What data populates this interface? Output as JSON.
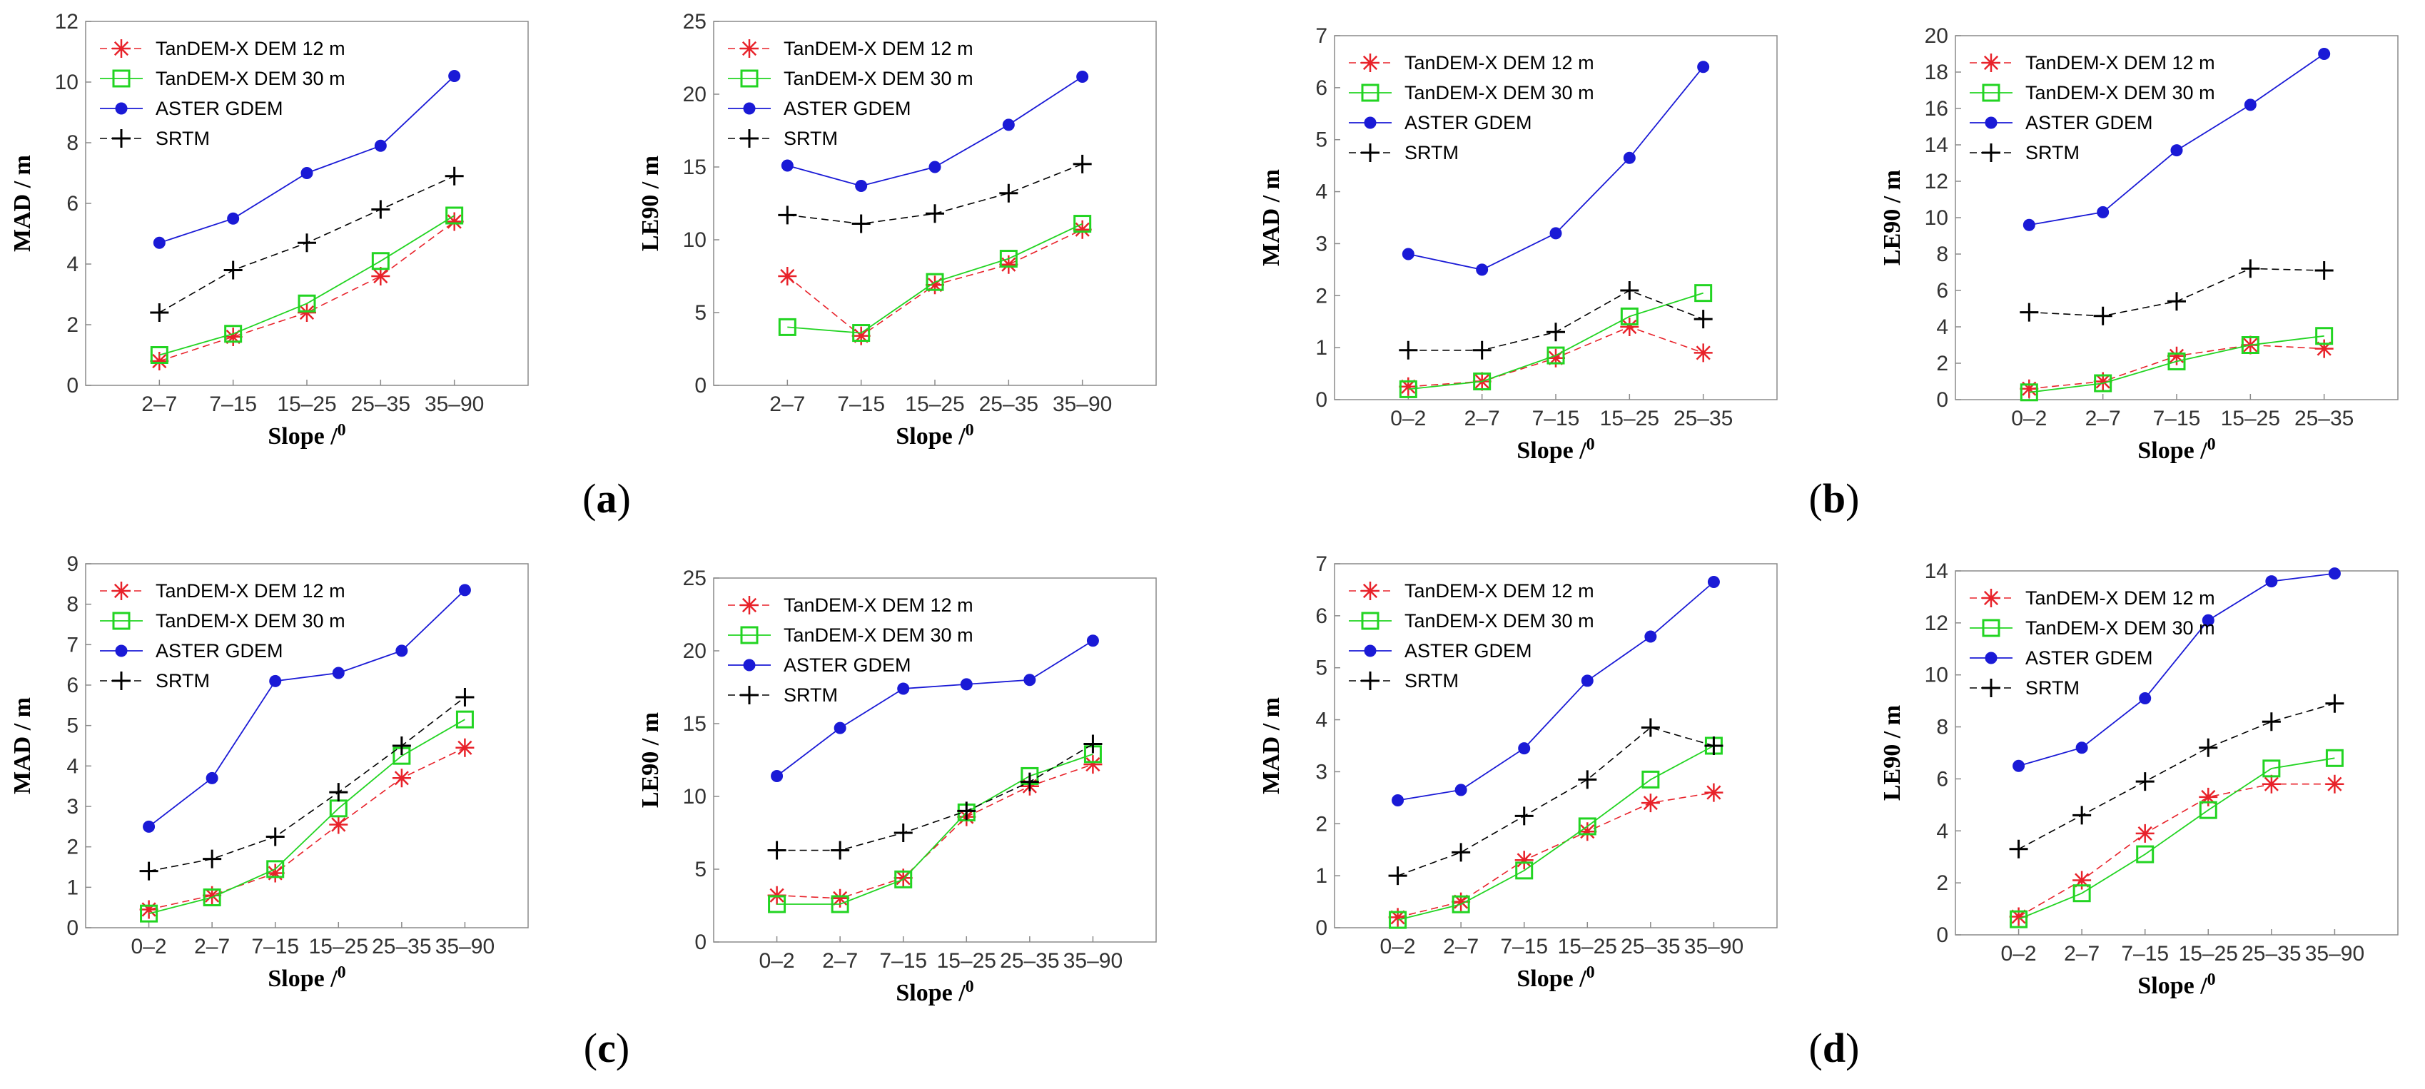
{
  "legend_entries": [
    "TanDEM-X DEM 12 m",
    "TanDEM-X DEM 30 m",
    "ASTER GDEM",
    "SRTM"
  ],
  "series_colors": {
    "TanDEM-X DEM 12 m": "#e8222a",
    "TanDEM-X DEM 30 m": "#22d422",
    "ASTER GDEM": "#1a1ad6",
    "SRTM": "#000000"
  },
  "captions": {
    "a": {
      "open": "(",
      "letter": "a",
      "close": ")"
    },
    "b": {
      "open": "(",
      "letter": "b",
      "close": ")"
    },
    "c": {
      "open": "(",
      "letter": "c",
      "close": ")"
    },
    "d": {
      "open": "(",
      "letter": "d",
      "close": ")"
    }
  },
  "chart_data": [
    {
      "id": "a-mad",
      "group": "a",
      "type": "line",
      "xlabel": "Slope /",
      "xlabel_sup": "0",
      "ylabel": "MAD / m",
      "categories": [
        "2–7",
        "7–15",
        "15–25",
        "25–35",
        "35–90"
      ],
      "ylim": [
        0,
        12
      ],
      "yticks": [
        0,
        2,
        4,
        6,
        8,
        10,
        12
      ],
      "legend": "top-left",
      "series": [
        {
          "name": "TanDEM-X DEM 12 m",
          "values": [
            0.8,
            1.6,
            2.4,
            3.6,
            5.4
          ]
        },
        {
          "name": "TanDEM-X DEM 30 m",
          "values": [
            1.0,
            1.7,
            2.7,
            4.1,
            5.6
          ]
        },
        {
          "name": "ASTER GDEM",
          "values": [
            4.7,
            5.5,
            7.0,
            7.9,
            10.2
          ]
        },
        {
          "name": "SRTM",
          "values": [
            2.4,
            3.8,
            4.7,
            5.8,
            6.9
          ]
        }
      ]
    },
    {
      "id": "a-le90",
      "group": "a",
      "type": "line",
      "xlabel": "Slope /",
      "xlabel_sup": "0",
      "ylabel": "LE90 / m",
      "categories": [
        "2–7",
        "7–15",
        "15–25",
        "25–35",
        "35–90"
      ],
      "ylim": [
        0,
        25
      ],
      "yticks": [
        0,
        5,
        10,
        15,
        20,
        25
      ],
      "legend": "top-left",
      "series": [
        {
          "name": "TanDEM-X DEM 12 m",
          "values": [
            7.5,
            3.4,
            6.9,
            8.3,
            10.7
          ]
        },
        {
          "name": "TanDEM-X DEM 30 m",
          "values": [
            4.0,
            3.6,
            7.1,
            8.7,
            11.1
          ]
        },
        {
          "name": "ASTER GDEM",
          "values": [
            15.1,
            13.7,
            15.0,
            17.9,
            21.2
          ]
        },
        {
          "name": "SRTM",
          "values": [
            11.7,
            11.1,
            11.8,
            13.2,
            15.2
          ]
        }
      ]
    },
    {
      "id": "b-mad",
      "group": "b",
      "type": "line",
      "xlabel": "Slope /",
      "xlabel_sup": "0",
      "ylabel": "MAD / m",
      "categories": [
        "0–2",
        "2–7",
        "7–15",
        "15–25",
        "25–35"
      ],
      "ylim": [
        0,
        7
      ],
      "yticks": [
        0,
        1,
        2,
        3,
        4,
        5,
        6,
        7
      ],
      "legend": "top-left",
      "series": [
        {
          "name": "TanDEM-X DEM 12 m",
          "values": [
            0.25,
            0.35,
            0.8,
            1.4,
            0.9
          ]
        },
        {
          "name": "TanDEM-X DEM 30 m",
          "values": [
            0.2,
            0.35,
            0.85,
            1.6,
            2.05
          ]
        },
        {
          "name": "ASTER GDEM",
          "values": [
            2.8,
            2.5,
            3.2,
            4.65,
            6.4
          ]
        },
        {
          "name": "SRTM",
          "values": [
            0.95,
            0.95,
            1.3,
            2.1,
            1.55
          ]
        }
      ]
    },
    {
      "id": "b-le90",
      "group": "b",
      "type": "line",
      "xlabel": "Slope /",
      "xlabel_sup": "0",
      "ylabel": "LE90 / m",
      "categories": [
        "0–2",
        "2–7",
        "7–15",
        "15–25",
        "25–35"
      ],
      "ylim": [
        0,
        20
      ],
      "yticks": [
        0,
        2,
        4,
        6,
        8,
        10,
        12,
        14,
        16,
        18,
        20
      ],
      "legend": "top-left",
      "series": [
        {
          "name": "TanDEM-X DEM 12 m",
          "values": [
            0.6,
            1.0,
            2.4,
            3.0,
            2.8
          ]
        },
        {
          "name": "TanDEM-X DEM 30 m",
          "values": [
            0.4,
            0.9,
            2.1,
            3.0,
            3.5
          ]
        },
        {
          "name": "ASTER GDEM",
          "values": [
            9.6,
            10.3,
            13.7,
            16.2,
            19.0
          ]
        },
        {
          "name": "SRTM",
          "values": [
            4.8,
            4.6,
            5.4,
            7.2,
            7.1
          ]
        }
      ]
    },
    {
      "id": "c-mad",
      "group": "c",
      "type": "line",
      "xlabel": "Slope /",
      "xlabel_sup": "0",
      "ylabel": "MAD / m",
      "categories": [
        "0–2",
        "2–7",
        "7–15",
        "15–25",
        "25–35",
        "35–90"
      ],
      "ylim": [
        0,
        9
      ],
      "yticks": [
        0,
        1,
        2,
        3,
        4,
        5,
        6,
        7,
        8,
        9
      ],
      "legend": "top-left",
      "series": [
        {
          "name": "TanDEM-X DEM 12 m",
          "values": [
            0.45,
            0.8,
            1.35,
            2.55,
            3.7,
            4.45
          ]
        },
        {
          "name": "TanDEM-X DEM 30 m",
          "values": [
            0.35,
            0.75,
            1.45,
            2.95,
            4.25,
            5.15
          ]
        },
        {
          "name": "ASTER GDEM",
          "values": [
            2.5,
            3.7,
            6.1,
            6.3,
            6.85,
            8.35
          ]
        },
        {
          "name": "SRTM",
          "values": [
            1.4,
            1.7,
            2.25,
            3.35,
            4.5,
            5.7
          ]
        }
      ]
    },
    {
      "id": "c-le90",
      "group": "c",
      "type": "line",
      "xlabel": "Slope /",
      "xlabel_sup": "0",
      "ylabel": "LE90 / m",
      "categories": [
        "0–2",
        "2–7",
        "7–15",
        "15–25",
        "25–35",
        "35–90"
      ],
      "ylim": [
        0,
        25
      ],
      "yticks": [
        0,
        5,
        10,
        15,
        20,
        25
      ],
      "legend": "top-left",
      "series": [
        {
          "name": "TanDEM-X DEM 12 m",
          "values": [
            3.2,
            3.0,
            4.4,
            8.6,
            10.7,
            12.2
          ]
        },
        {
          "name": "TanDEM-X DEM 30 m",
          "values": [
            2.6,
            2.6,
            4.3,
            8.9,
            11.4,
            12.9
          ]
        },
        {
          "name": "ASTER GDEM",
          "values": [
            11.4,
            14.7,
            17.4,
            17.7,
            18.0,
            20.7
          ]
        },
        {
          "name": "SRTM",
          "values": [
            6.3,
            6.3,
            7.5,
            9.0,
            11.0,
            13.6
          ]
        }
      ]
    },
    {
      "id": "d-mad",
      "group": "d",
      "type": "line",
      "xlabel": "Slope /",
      "xlabel_sup": "0",
      "ylabel": "MAD / m",
      "categories": [
        "0–2",
        "2–7",
        "7–15",
        "15–25",
        "25–35",
        "35–90"
      ],
      "ylim": [
        0,
        7
      ],
      "yticks": [
        0,
        1,
        2,
        3,
        4,
        5,
        6,
        7
      ],
      "legend": "top-left",
      "series": [
        {
          "name": "TanDEM-X DEM 12 m",
          "values": [
            0.2,
            0.5,
            1.3,
            1.85,
            2.4,
            2.6
          ]
        },
        {
          "name": "TanDEM-X DEM 30 m",
          "values": [
            0.15,
            0.45,
            1.1,
            1.95,
            2.85,
            3.5
          ]
        },
        {
          "name": "ASTER GDEM",
          "values": [
            2.45,
            2.65,
            3.45,
            4.75,
            5.6,
            6.65
          ]
        },
        {
          "name": "SRTM",
          "values": [
            1.0,
            1.45,
            2.15,
            2.85,
            3.85,
            3.5
          ]
        }
      ]
    },
    {
      "id": "d-le90",
      "group": "d",
      "type": "line",
      "xlabel": "Slope /",
      "xlabel_sup": "0",
      "ylabel": "LE90 / m",
      "categories": [
        "0–2",
        "2–7",
        "7–15",
        "15–25",
        "25–35",
        "35–90"
      ],
      "ylim": [
        0,
        14
      ],
      "yticks": [
        0,
        2,
        4,
        6,
        8,
        10,
        12,
        14
      ],
      "legend": "top-left",
      "series": [
        {
          "name": "TanDEM-X DEM 12 m",
          "values": [
            0.7,
            2.1,
            3.9,
            5.3,
            5.8,
            5.8
          ]
        },
        {
          "name": "TanDEM-X DEM 30 m",
          "values": [
            0.6,
            1.6,
            3.1,
            4.8,
            6.4,
            6.8
          ]
        },
        {
          "name": "ASTER GDEM",
          "values": [
            6.5,
            7.2,
            9.1,
            12.1,
            13.6,
            13.9
          ]
        },
        {
          "name": "SRTM",
          "values": [
            3.3,
            4.6,
            5.9,
            7.2,
            8.2,
            8.9
          ]
        }
      ]
    }
  ]
}
